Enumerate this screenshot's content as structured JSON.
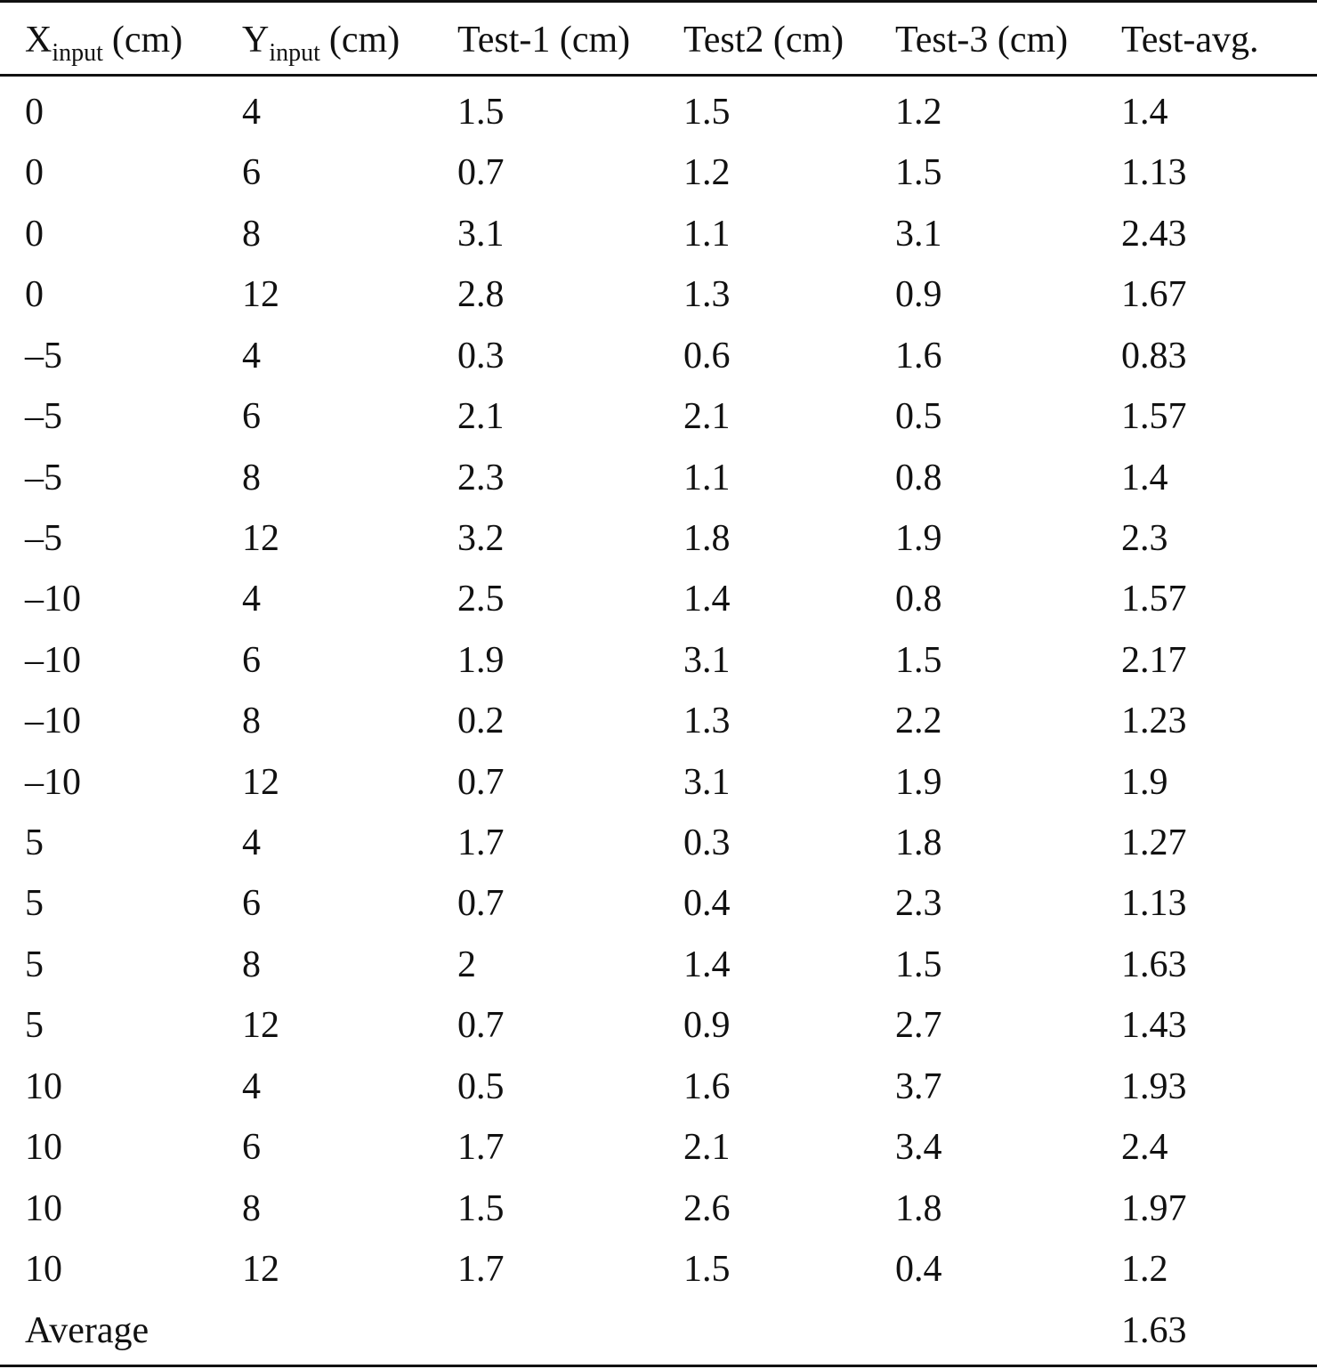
{
  "table": {
    "header": [
      {
        "base": "X",
        "sub": "input",
        "rest": "(cm)"
      },
      {
        "base": "Y",
        "sub": "input",
        "rest": "(cm)"
      },
      "Test-1 (cm)",
      "Test2 (cm)",
      "Test-3 (cm)",
      "Test-avg."
    ],
    "rows": [
      [
        "0",
        "4",
        "1.5",
        "1.5",
        "1.2",
        "1.4"
      ],
      [
        "0",
        "6",
        "0.7",
        "1.2",
        "1.5",
        "1.13"
      ],
      [
        "0",
        "8",
        "3.1",
        "1.1",
        "3.1",
        "2.43"
      ],
      [
        "0",
        "12",
        "2.8",
        "1.3",
        "0.9",
        "1.67"
      ],
      [
        "–5",
        "4",
        "0.3",
        "0.6",
        "1.6",
        "0.83"
      ],
      [
        "–5",
        "6",
        "2.1",
        "2.1",
        "0.5",
        "1.57"
      ],
      [
        "–5",
        "8",
        "2.3",
        "1.1",
        "0.8",
        "1.4"
      ],
      [
        "–5",
        "12",
        "3.2",
        "1.8",
        "1.9",
        "2.3"
      ],
      [
        "–10",
        "4",
        "2.5",
        "1.4",
        "0.8",
        "1.57"
      ],
      [
        "–10",
        "6",
        "1.9",
        "3.1",
        "1.5",
        "2.17"
      ],
      [
        "–10",
        "8",
        "0.2",
        "1.3",
        "2.2",
        "1.23"
      ],
      [
        "–10",
        "12",
        "0.7",
        "3.1",
        "1.9",
        "1.9"
      ],
      [
        "5",
        "4",
        "1.7",
        "0.3",
        "1.8",
        "1.27"
      ],
      [
        "5",
        "6",
        "0.7",
        "0.4",
        "2.3",
        "1.13"
      ],
      [
        "5",
        "8",
        "2",
        "1.4",
        "1.5",
        "1.63"
      ],
      [
        "5",
        "12",
        "0.7",
        "0.9",
        "2.7",
        "1.43"
      ],
      [
        "10",
        "4",
        "0.5",
        "1.6",
        "3.7",
        "1.93"
      ],
      [
        "10",
        "6",
        "1.7",
        "2.1",
        "3.4",
        "2.4"
      ],
      [
        "10",
        "8",
        "1.5",
        "2.6",
        "1.8",
        "1.97"
      ],
      [
        "10",
        "12",
        "1.7",
        "1.5",
        "0.4",
        "1.2"
      ]
    ],
    "footer": {
      "label": "Average",
      "value": "1.63"
    }
  }
}
